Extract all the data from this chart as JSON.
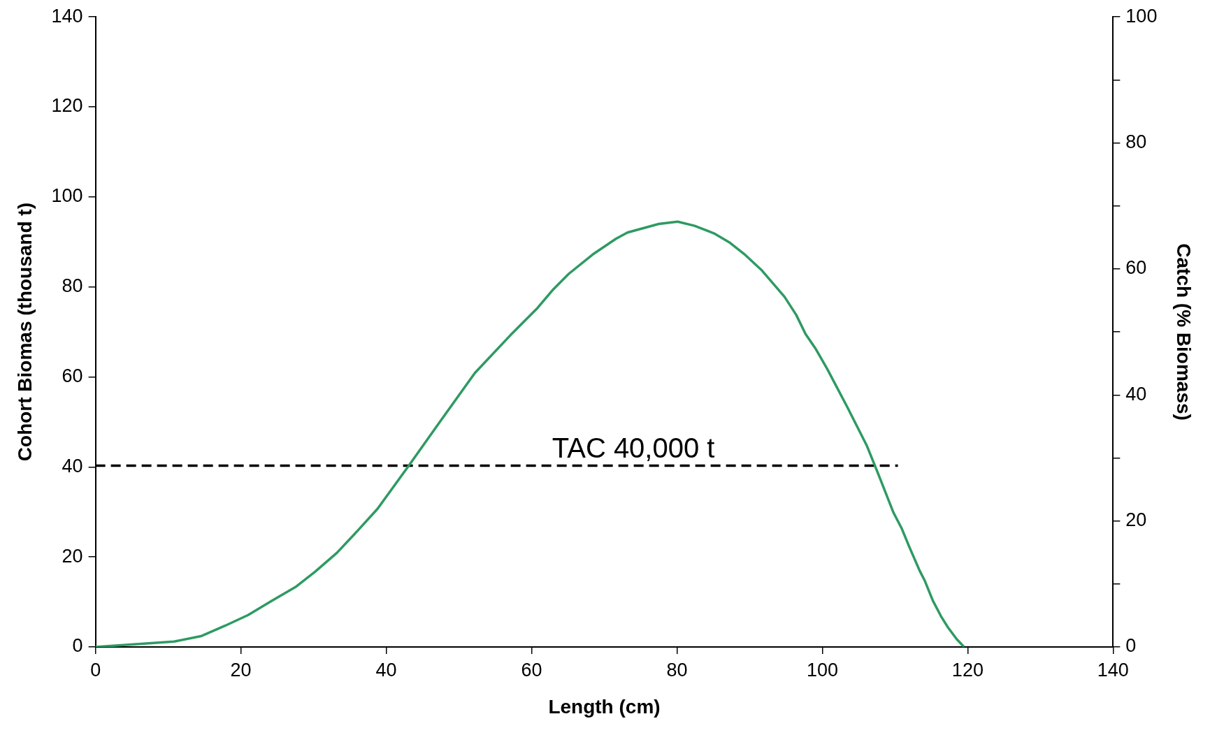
{
  "chart_data": {
    "type": "line",
    "xlabel": "Length (cm)",
    "ylabel": "Cohort Biomas (thousand t)",
    "y2label": "Catch (% Biomass)",
    "xlim": [
      0,
      140
    ],
    "xticks": [
      0,
      20,
      40,
      60,
      80,
      100,
      120,
      140
    ],
    "ylim": [
      0,
      140
    ],
    "yticks": [
      0,
      20,
      40,
      60,
      80,
      100,
      120,
      140
    ],
    "y2lim": [
      0,
      100
    ],
    "y2ticks": [
      0,
      {
        "value": 10,
        "label": null
      },
      20,
      {
        "value": 30,
        "label": null
      },
      40,
      {
        "value": 50,
        "label": null
      },
      60,
      {
        "value": 70,
        "label": null
      },
      80,
      {
        "value": 90,
        "label": null
      },
      100
    ],
    "grid": false,
    "legend": false,
    "marker": "none",
    "series": [
      {
        "color": "#2e9a62",
        "line_style": "solid",
        "x": [
          0,
          10.8,
          14.5,
          17.8,
          21,
          24.2,
          27.5,
          30.2,
          33.2,
          36.1,
          38.8,
          43.1,
          47.5,
          52.2,
          57.1,
          60.8,
          63,
          65.1,
          68.4,
          71.6,
          73.2,
          77.5,
          80.1,
          82.4,
          85.1,
          87.3,
          89.4,
          91.6,
          94.8,
          96.4,
          97.7,
          99.1,
          100.7,
          103.4,
          106.1,
          107.7,
          109.8,
          110.9,
          112,
          113.4,
          114.1,
          115.2,
          116.3,
          117.3,
          118.5,
          119.5
        ],
        "values": [
          0,
          1.2,
          2.4,
          4.7,
          7.1,
          10.2,
          13.3,
          16.7,
          20.9,
          25.9,
          30.7,
          40.3,
          50.3,
          60.9,
          69.3,
          75.3,
          79.5,
          82.9,
          87.2,
          90.7,
          92.1,
          94,
          94.5,
          93.6,
          91.9,
          89.8,
          87.1,
          83.8,
          77.8,
          73.8,
          69.5,
          66.2,
          61.7,
          53.4,
          44.8,
          38.4,
          29.8,
          26.4,
          22.1,
          16.9,
          14.7,
          10.3,
          6.9,
          4.3,
          1.7,
          0
        ]
      },
      {
        "color": "#000000",
        "line_style": "dashed",
        "x": [
          0,
          110.4
        ],
        "values": [
          40.3,
          40.3
        ]
      }
    ],
    "annotations": [
      {
        "text": "TAC 40,000 t",
        "x": 74,
        "y": 40.3
      }
    ]
  }
}
